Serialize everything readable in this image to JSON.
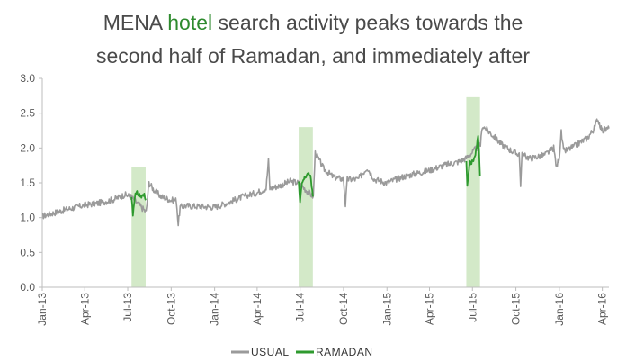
{
  "title": {
    "line1_pre": "MENA ",
    "line1_highlight": "hotel",
    "line1_post": " search activity peaks towards the",
    "line2": "second half of Ramadan, and immediately after"
  },
  "colors": {
    "usual": "#9a9a9a",
    "ramadan": "#2e9a2e",
    "highlight_band": "#d3e9c8",
    "title": "#4a4a4a",
    "title_highlight": "#2e8b2e",
    "axis": "#bdbdbd"
  },
  "chart_data": {
    "type": "line",
    "title": "MENA hotel search activity peaks towards the second half of Ramadan, and immediately after",
    "xlabel": "",
    "ylabel": "",
    "xlim": [
      "2013-01-01",
      "2016-04-15"
    ],
    "ylim": [
      0,
      3.0
    ],
    "yticks": [
      "0.0",
      "0.5",
      "1.0",
      "1.5",
      "2.0",
      "2.5",
      "3.0"
    ],
    "xticks": [
      "Jan-13",
      "Apr-13",
      "Jul-13",
      "Oct-13",
      "Jan-14",
      "Apr-14",
      "Jul-14",
      "Oct-14",
      "Jan-15",
      "Apr-15",
      "Jul-15",
      "Oct-15",
      "Jan-16",
      "Apr-16"
    ],
    "grid": false,
    "legend": {
      "position": "bottom",
      "entries": [
        "USUAL",
        "RAMADAN"
      ]
    },
    "ramadan_periods": [
      {
        "start": "2013-07-09",
        "end": "2013-08-08",
        "band_top": 1.73
      },
      {
        "start": "2014-06-28",
        "end": "2014-07-28",
        "band_top": 2.3
      },
      {
        "start": "2015-06-18",
        "end": "2015-07-17",
        "band_top": 2.73
      }
    ],
    "series": [
      {
        "name": "USUAL",
        "points": [
          [
            "2013-01-01",
            1.02
          ],
          [
            "2013-02-01",
            1.08
          ],
          [
            "2013-03-01",
            1.13
          ],
          [
            "2013-04-01",
            1.18
          ],
          [
            "2013-05-01",
            1.21
          ],
          [
            "2013-06-01",
            1.26
          ],
          [
            "2013-06-25",
            1.33
          ],
          [
            "2013-07-08",
            1.3
          ],
          [
            "2013-08-09",
            1.08
          ],
          [
            "2013-08-15",
            1.5
          ],
          [
            "2013-08-25",
            1.4
          ],
          [
            "2013-09-10",
            1.3
          ],
          [
            "2013-10-01",
            1.25
          ],
          [
            "2013-10-12",
            1.25
          ],
          [
            "2013-10-16",
            0.9
          ],
          [
            "2013-10-20",
            1.15
          ],
          [
            "2013-11-01",
            1.17
          ],
          [
            "2013-12-01",
            1.16
          ],
          [
            "2014-01-01",
            1.15
          ],
          [
            "2014-02-01",
            1.22
          ],
          [
            "2014-03-01",
            1.3
          ],
          [
            "2014-04-01",
            1.36
          ],
          [
            "2014-04-20",
            1.42
          ],
          [
            "2014-04-25",
            1.82
          ],
          [
            "2014-04-28",
            1.42
          ],
          [
            "2014-05-15",
            1.45
          ],
          [
            "2014-06-10",
            1.52
          ],
          [
            "2014-06-27",
            1.5
          ],
          [
            "2014-07-29",
            1.3
          ],
          [
            "2014-08-02",
            1.93
          ],
          [
            "2014-08-20",
            1.7
          ],
          [
            "2014-09-10",
            1.58
          ],
          [
            "2014-10-01",
            1.55
          ],
          [
            "2014-10-05",
            1.18
          ],
          [
            "2014-10-09",
            1.55
          ],
          [
            "2014-11-01",
            1.55
          ],
          [
            "2014-11-20",
            1.72
          ],
          [
            "2014-12-05",
            1.55
          ],
          [
            "2015-01-01",
            1.5
          ],
          [
            "2015-02-01",
            1.58
          ],
          [
            "2015-03-01",
            1.63
          ],
          [
            "2015-04-01",
            1.68
          ],
          [
            "2015-05-01",
            1.75
          ],
          [
            "2015-06-01",
            1.8
          ],
          [
            "2015-06-17",
            1.85
          ],
          [
            "2015-07-18",
            2.05
          ],
          [
            "2015-07-22",
            2.32
          ],
          [
            "2015-08-10",
            2.2
          ],
          [
            "2015-09-01",
            2.05
          ],
          [
            "2015-10-01",
            1.92
          ],
          [
            "2015-10-08",
            1.92
          ],
          [
            "2015-10-11",
            1.48
          ],
          [
            "2015-10-14",
            1.9
          ],
          [
            "2015-11-01",
            1.85
          ],
          [
            "2015-12-01",
            1.9
          ],
          [
            "2015-12-20",
            2.0
          ],
          [
            "2015-12-26",
            1.72
          ],
          [
            "2016-01-01",
            1.88
          ],
          [
            "2016-01-05",
            2.22
          ],
          [
            "2016-01-10",
            1.95
          ],
          [
            "2016-02-01",
            2.02
          ],
          [
            "2016-03-01",
            2.15
          ],
          [
            "2016-03-15",
            2.28
          ],
          [
            "2016-03-22",
            2.42
          ],
          [
            "2016-04-01",
            2.25
          ],
          [
            "2016-04-15",
            2.28
          ]
        ]
      },
      {
        "name": "RAMADAN",
        "segments": [
          [
            [
              "2013-07-09",
              1.3
            ],
            [
              "2013-07-12",
              1.05
            ],
            [
              "2013-07-16",
              1.32
            ],
            [
              "2013-07-22",
              1.35
            ],
            [
              "2013-07-30",
              1.3
            ],
            [
              "2013-08-05",
              1.32
            ],
            [
              "2013-08-08",
              1.25
            ]
          ],
          [
            [
              "2014-06-28",
              1.5
            ],
            [
              "2014-07-01",
              1.2
            ],
            [
              "2014-07-05",
              1.5
            ],
            [
              "2014-07-12",
              1.58
            ],
            [
              "2014-07-18",
              1.65
            ],
            [
              "2014-07-24",
              1.55
            ],
            [
              "2014-07-28",
              1.3
            ]
          ],
          [
            [
              "2015-06-18",
              1.85
            ],
            [
              "2015-06-20",
              1.47
            ],
            [
              "2015-06-25",
              1.78
            ],
            [
              "2015-07-03",
              1.82
            ],
            [
              "2015-07-10",
              2.0
            ],
            [
              "2015-07-13",
              2.2
            ],
            [
              "2015-07-15",
              1.95
            ],
            [
              "2015-07-17",
              1.6
            ]
          ]
        ]
      }
    ]
  }
}
